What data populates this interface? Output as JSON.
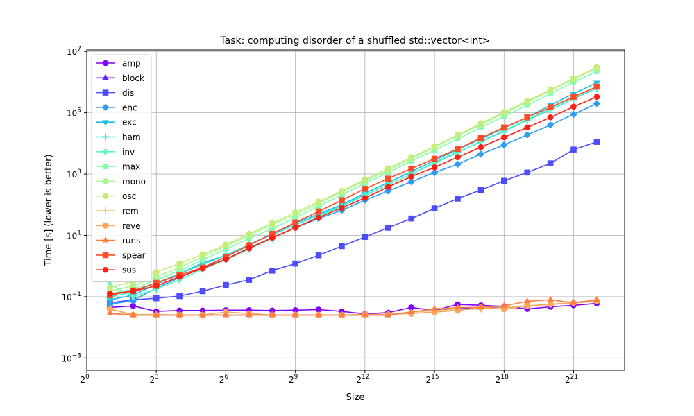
{
  "chart_data": {
    "type": "line",
    "title": "Task: computing disorder of a shuffled std::vector<int>",
    "xlabel": "Size",
    "ylabel": "Time [s] (lower is better)",
    "xscale": "log2",
    "yscale": "log10",
    "xlim_log2": [
      0,
      23.2
    ],
    "ylim_log10": [
      -3.4,
      7.05
    ],
    "grid": true,
    "legend_position": "upper-left",
    "x_ticks": [
      {
        "base": "2",
        "exp": "0",
        "value_log2": 0
      },
      {
        "base": "2",
        "exp": "3",
        "value_log2": 3
      },
      {
        "base": "2",
        "exp": "6",
        "value_log2": 6
      },
      {
        "base": "2",
        "exp": "9",
        "value_log2": 9
      },
      {
        "base": "2",
        "exp": "12",
        "value_log2": 12
      },
      {
        "base": "2",
        "exp": "15",
        "value_log2": 15
      },
      {
        "base": "2",
        "exp": "18",
        "value_log2": 18
      },
      {
        "base": "2",
        "exp": "21",
        "value_log2": 21
      }
    ],
    "y_ticks": [
      {
        "base": "10",
        "exp": "−3",
        "value_log10": -3
      },
      {
        "base": "10",
        "exp": "−1",
        "value_log10": -1
      },
      {
        "base": "10",
        "exp": "1",
        "value_log10": 1
      },
      {
        "base": "10",
        "exp": "3",
        "value_log10": 3
      },
      {
        "base": "10",
        "exp": "5",
        "value_log10": 5
      },
      {
        "base": "10",
        "exp": "7",
        "value_log10": 7
      }
    ],
    "x_log2": [
      1,
      2,
      3,
      4,
      5,
      6,
      7,
      8,
      9,
      10,
      11,
      12,
      13,
      14,
      15,
      16,
      17,
      18,
      19,
      20,
      21,
      22
    ],
    "series": [
      {
        "name": "amp",
        "color": "#8000ff",
        "marker": "circle",
        "log10_time": [
          -1.35,
          -1.3,
          -1.48,
          -1.45,
          -1.45,
          -1.44,
          -1.44,
          -1.45,
          -1.44,
          -1.42,
          -1.48,
          -1.56,
          -1.52,
          -1.35,
          -1.45,
          -1.25,
          -1.28,
          -1.32,
          -1.4,
          -1.33,
          -1.28,
          -1.22
        ]
      },
      {
        "name": "block",
        "color": "#6a22fe",
        "marker": "triangle-up",
        "log10_time": [
          -1.55,
          -1.6,
          -1.6,
          -1.6,
          -1.6,
          -1.6,
          -1.6,
          -1.6,
          -1.6,
          -1.6,
          -1.6,
          -1.6,
          -1.6,
          -1.5,
          -1.45,
          -1.4,
          -1.35,
          -1.35,
          -1.3,
          -1.25,
          -1.2,
          -1.15
        ]
      },
      {
        "name": "dis",
        "color": "#4d4dfc",
        "marker": "square",
        "log10_time": [
          -1.2,
          -1.1,
          -1.05,
          -0.98,
          -0.82,
          -0.62,
          -0.45,
          -0.15,
          0.08,
          0.35,
          0.65,
          0.95,
          1.25,
          1.55,
          1.88,
          2.2,
          2.48,
          2.78,
          3.05,
          3.35,
          3.8,
          4.05
        ]
      },
      {
        "name": "enc",
        "color": "#2e9ef2",
        "marker": "diamond",
        "log10_time": [
          -1.25,
          -1.12,
          -0.72,
          -0.38,
          -0.05,
          0.22,
          0.6,
          0.92,
          1.25,
          1.55,
          1.82,
          2.15,
          2.45,
          2.75,
          3.05,
          3.32,
          3.65,
          3.95,
          4.28,
          4.6,
          4.95,
          5.3
        ]
      },
      {
        "name": "exc",
        "color": "#1cbde4",
        "marker": "triangle-down",
        "log10_time": [
          -1.1,
          -0.95,
          -0.6,
          -0.25,
          0.1,
          0.35,
          0.7,
          1.05,
          1.4,
          1.7,
          2.0,
          2.38,
          2.72,
          3.08,
          3.45,
          3.8,
          4.15,
          4.5,
          4.85,
          5.25,
          5.62,
          5.98
        ]
      },
      {
        "name": "ham",
        "color": "#38e3d9",
        "marker": "plus",
        "log10_time": [
          -1.0,
          -0.85,
          -0.55,
          -0.25,
          0.05,
          0.35,
          0.7,
          1.02,
          1.35,
          1.65,
          1.98,
          2.32,
          2.65,
          3.0,
          3.38,
          3.72,
          4.05,
          4.4,
          4.75,
          5.1,
          5.45,
          5.8
        ]
      },
      {
        "name": "inv",
        "color": "#5df5c5",
        "marker": "thin-diamond",
        "log10_time": [
          -0.6,
          -1.0,
          -0.75,
          -0.45,
          -0.1,
          0.2,
          0.55,
          0.9,
          1.25,
          1.6,
          1.95,
          2.3,
          2.65,
          3.0,
          3.35,
          3.7,
          4.08,
          4.42,
          4.78,
          5.15,
          5.5,
          5.85
        ]
      },
      {
        "name": "max",
        "color": "#84fdb0",
        "marker": "pentagon",
        "log10_time": [
          -0.9,
          -0.75,
          -0.45,
          -0.15,
          0.2,
          0.55,
          0.9,
          1.22,
          1.58,
          1.95,
          2.32,
          2.7,
          3.05,
          3.42,
          3.78,
          4.15,
          4.52,
          4.88,
          5.25,
          5.62,
          6.0,
          6.35
        ]
      },
      {
        "name": "mono",
        "color": "#aaf891",
        "marker": "hexagon",
        "log10_time": [
          -0.82,
          -0.65,
          -0.35,
          -0.05,
          0.3,
          0.65,
          1.0,
          1.35,
          1.68,
          2.05,
          2.42,
          2.78,
          3.12,
          3.5,
          3.88,
          4.25,
          4.62,
          4.98,
          5.35,
          5.72,
          6.1,
          6.45
        ]
      },
      {
        "name": "osc",
        "color": "#c6ec7a",
        "marker": "hexagon",
        "log10_time": [
          -0.7,
          -0.5,
          -0.2,
          0.08,
          0.38,
          0.7,
          1.05,
          1.4,
          1.75,
          2.1,
          2.45,
          2.82,
          3.18,
          3.55,
          3.9,
          4.28,
          4.65,
          5.02,
          5.38,
          5.75,
          6.12,
          6.48
        ]
      },
      {
        "name": "rem",
        "color": "#e5ce6c",
        "marker": "plus",
        "log10_time": [
          -1.4,
          -1.58,
          -1.58,
          -1.6,
          -1.6,
          -1.6,
          -1.6,
          -1.6,
          -1.6,
          -1.6,
          -1.6,
          -1.6,
          -1.58,
          -1.5,
          -1.45,
          -1.42,
          -1.4,
          -1.35,
          -1.3,
          -1.25,
          -1.2,
          -1.1
        ]
      },
      {
        "name": "reve",
        "color": "#fca55d",
        "marker": "octagon",
        "log10_time": [
          -1.4,
          -1.6,
          -1.6,
          -1.6,
          -1.6,
          -1.5,
          -1.55,
          -1.6,
          -1.6,
          -1.6,
          -1.6,
          -1.58,
          -1.58,
          -1.55,
          -1.5,
          -1.45,
          -1.35,
          -1.4,
          -1.3,
          -1.25,
          -1.2,
          -1.15
        ]
      },
      {
        "name": "runs",
        "color": "#ff7e40",
        "marker": "triangle-up",
        "log10_time": [
          -1.55,
          -1.6,
          -1.6,
          -1.6,
          -1.6,
          -1.6,
          -1.6,
          -1.6,
          -1.6,
          -1.6,
          -1.6,
          -1.6,
          -1.6,
          -1.5,
          -1.4,
          -1.35,
          -1.35,
          -1.3,
          -1.15,
          -1.1,
          -1.2,
          -1.1
        ]
      },
      {
        "name": "spear",
        "color": "#ff4c26",
        "marker": "square",
        "log10_time": [
          -0.95,
          -0.8,
          -0.55,
          -0.3,
          -0.05,
          0.3,
          0.68,
          1.05,
          1.42,
          1.78,
          2.15,
          2.52,
          2.85,
          3.18,
          3.5,
          3.82,
          4.18,
          4.52,
          4.85,
          5.18,
          5.52,
          5.85
        ]
      },
      {
        "name": "sus",
        "color": "#ff1e14",
        "marker": "circle",
        "log10_time": [
          -0.9,
          -0.82,
          -0.65,
          -0.35,
          -0.08,
          0.22,
          0.58,
          0.92,
          1.25,
          1.58,
          1.9,
          2.22,
          2.58,
          2.92,
          3.22,
          3.55,
          3.88,
          4.2,
          4.52,
          4.85,
          5.2,
          5.52
        ]
      }
    ]
  }
}
